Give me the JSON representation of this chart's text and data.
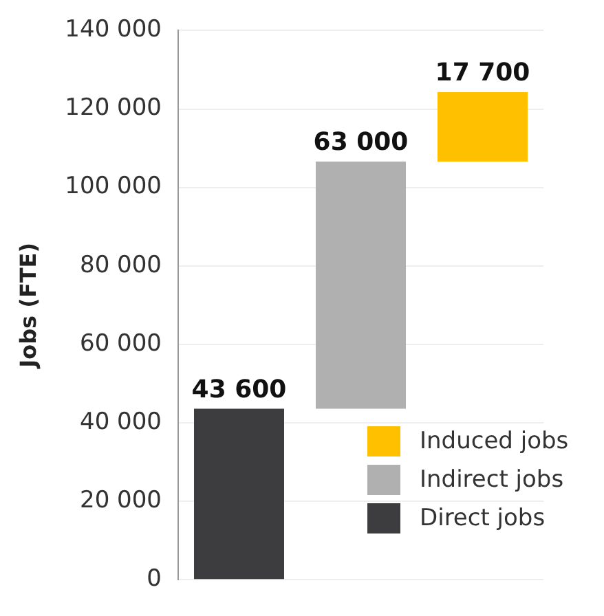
{
  "chart_data": {
    "type": "bar",
    "ylabel": "Jobs (FTE)",
    "categories": [
      null,
      null,
      null
    ],
    "series": [
      {
        "name": "Direct jobs",
        "color": "#3d3d3f",
        "values": [
          43600,
          null,
          null
        ],
        "base": [
          0,
          null,
          null
        ],
        "value_labels": [
          "43 600",
          null,
          null
        ]
      },
      {
        "name": "Indirect jobs",
        "color": "#b0b0b0",
        "values": [
          null,
          63000,
          null
        ],
        "base": [
          null,
          43600,
          null
        ],
        "value_labels": [
          null,
          "63 000",
          null
        ]
      },
      {
        "name": "Induced jobs",
        "color": "#ffc000",
        "values": [
          null,
          null,
          17700
        ],
        "base": [
          null,
          null,
          106600
        ],
        "value_labels": [
          null,
          null,
          "17 700"
        ]
      }
    ],
    "ylim": [
      0,
      140000
    ],
    "yticks": [
      {
        "value": 0,
        "label": "0"
      },
      {
        "value": 20000,
        "label": "20 000"
      },
      {
        "value": 40000,
        "label": "40 000"
      },
      {
        "value": 60000,
        "label": "60 000"
      },
      {
        "value": 80000,
        "label": "80 000"
      },
      {
        "value": 100000,
        "label": "100 000"
      },
      {
        "value": 120000,
        "label": "120 000"
      },
      {
        "value": 140000,
        "label": "140 000"
      }
    ],
    "grid": "y",
    "legend": "bottom right"
  }
}
